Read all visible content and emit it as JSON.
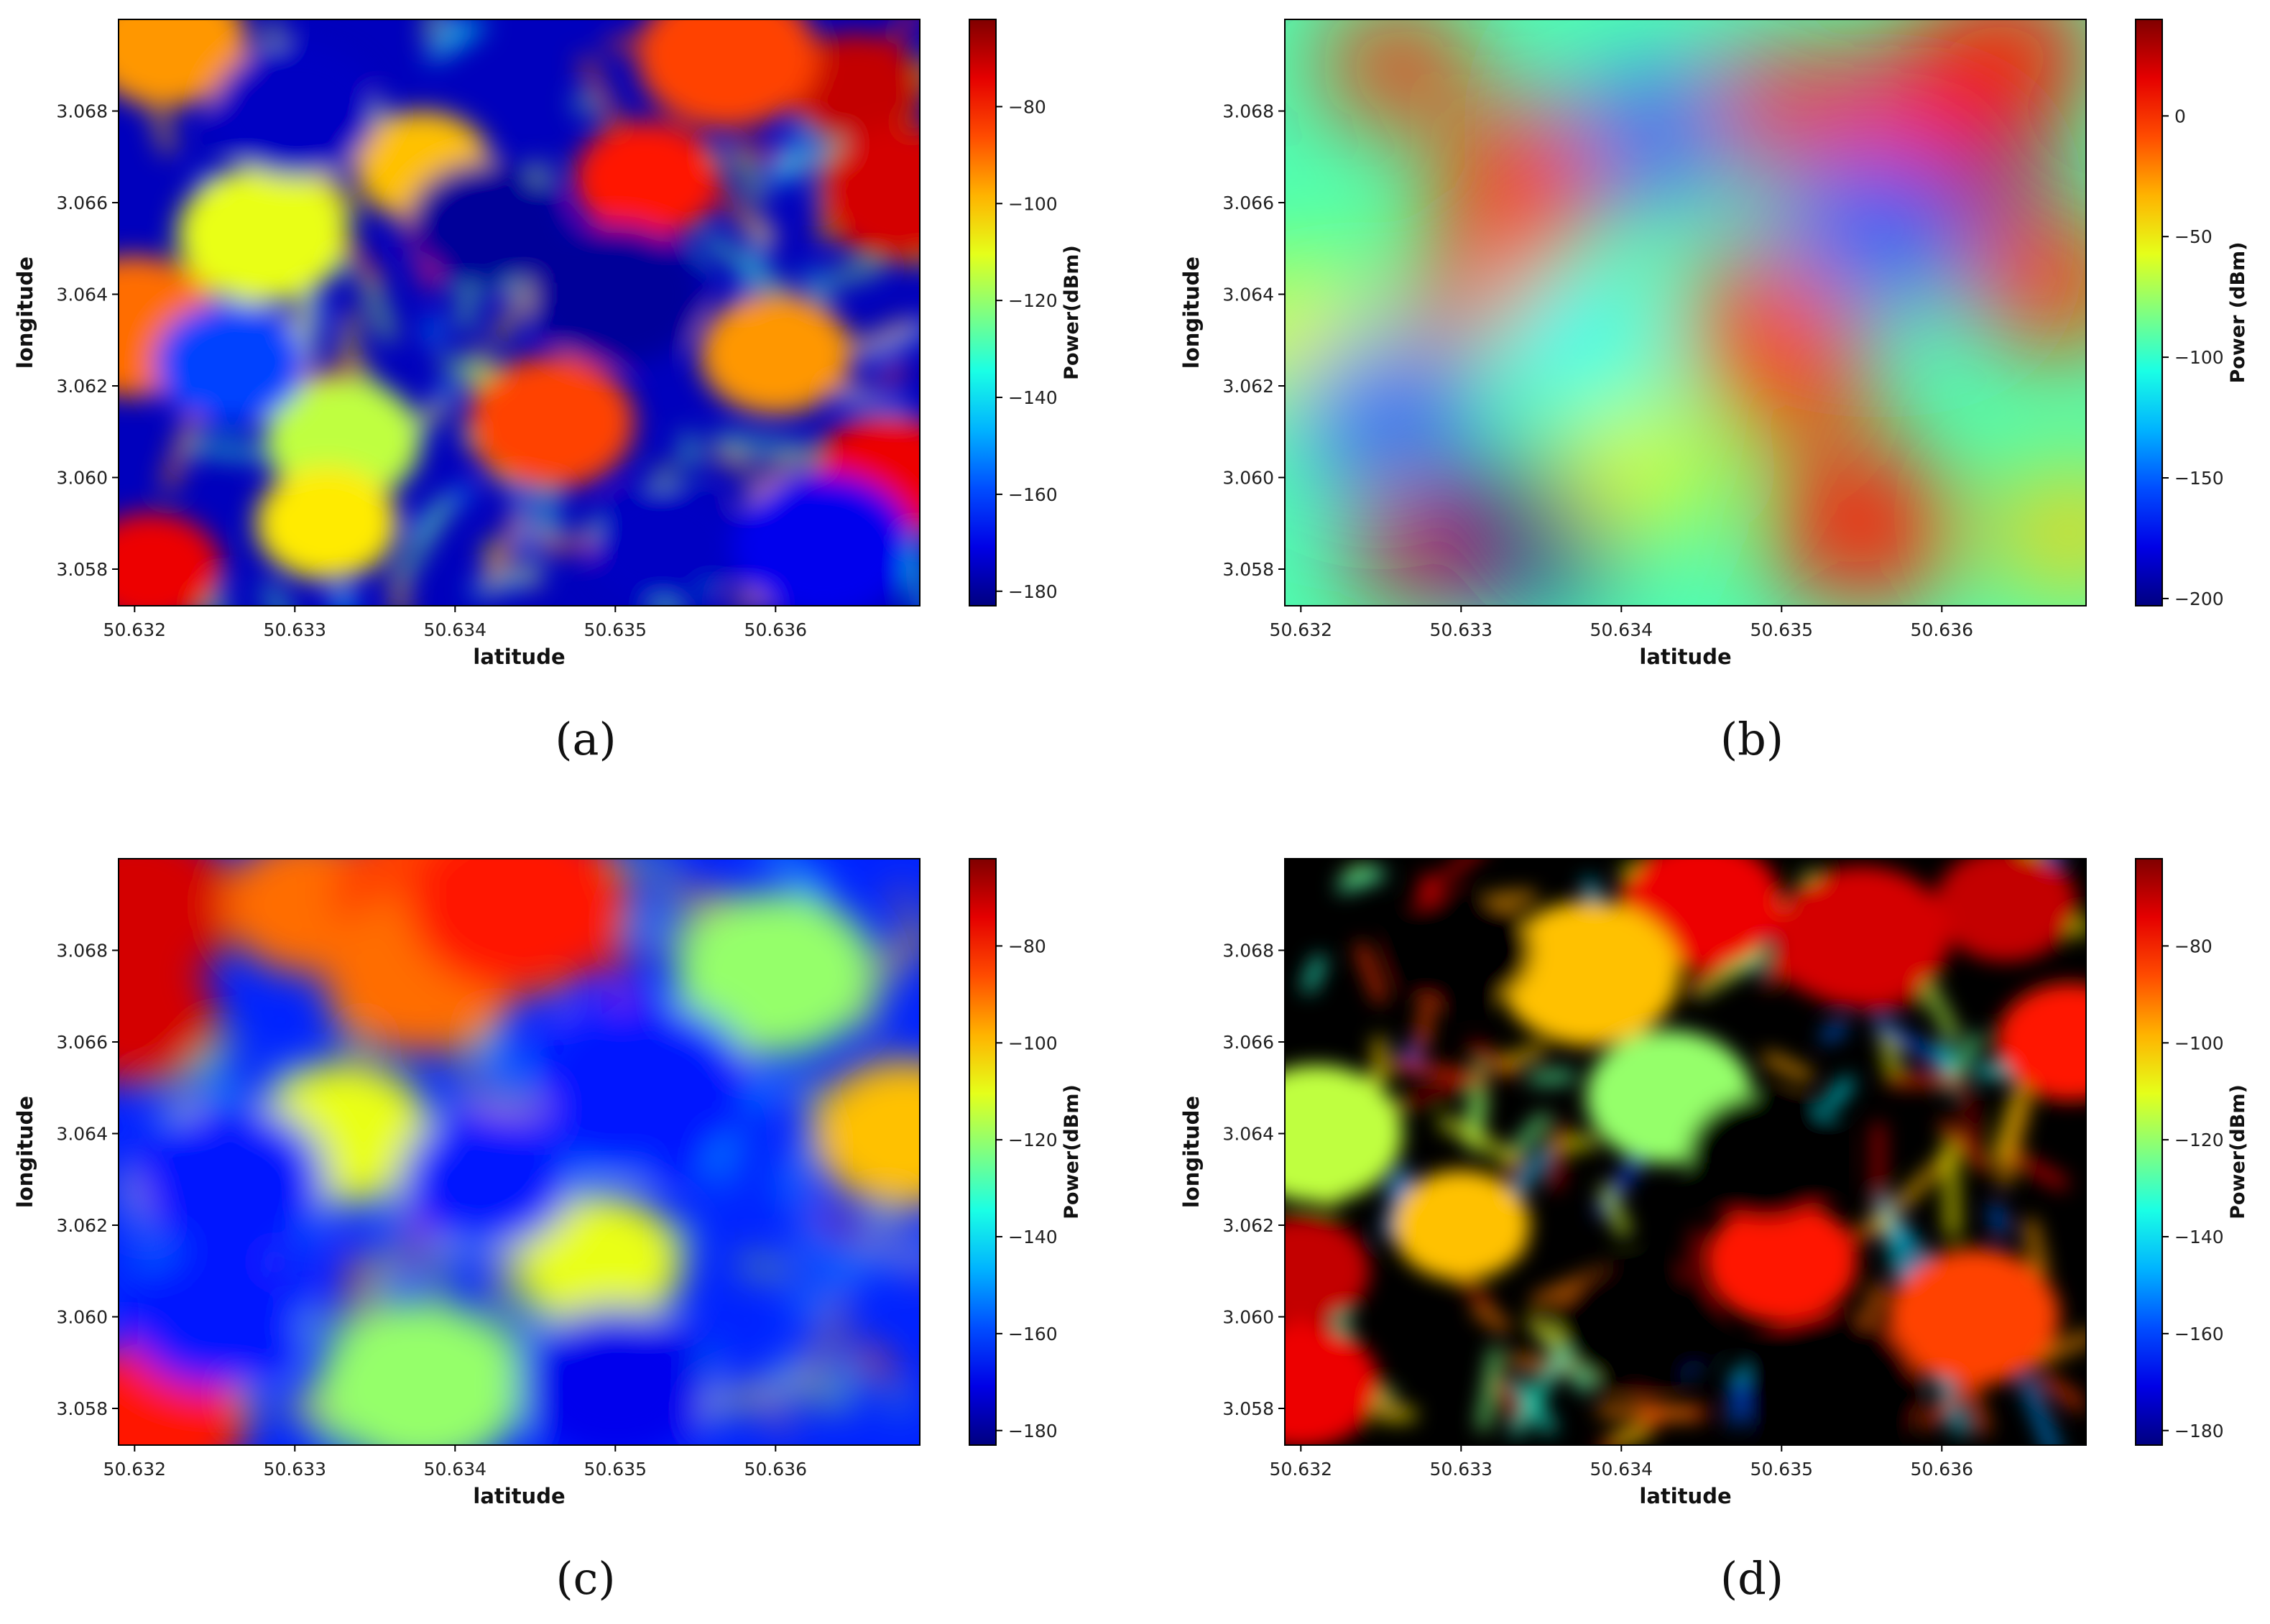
{
  "chart_data": [
    {
      "panel": "(a)",
      "type": "heatmap",
      "xlabel": "latitude",
      "ylabel": "longitude",
      "colorbar_label": "Power(dBm)",
      "colormap": "jet",
      "xlim": [
        50.6319,
        50.6369
      ],
      "ylim": [
        3.0572,
        3.07
      ],
      "xticks": [
        "50.632",
        "50.633",
        "50.634",
        "50.635",
        "50.636"
      ],
      "yticks": [
        "3.058",
        "3.060",
        "3.062",
        "3.064",
        "3.066",
        "3.068"
      ],
      "clim": [
        -183,
        -62
      ],
      "cticks": [
        "-80",
        "-100",
        "-120",
        "-140",
        "-160",
        "-180"
      ],
      "blobs": [
        {
          "x": 50.6365,
          "y": 3.0685,
          "v": -70
        },
        {
          "x": 50.6368,
          "y": 3.0662,
          "v": -72
        },
        {
          "x": 50.6367,
          "y": 3.06,
          "v": -75
        },
        {
          "x": 50.6321,
          "y": 3.058,
          "v": -75
        },
        {
          "x": 50.632,
          "y": 3.0633,
          "v": -90
        },
        {
          "x": 50.6322,
          "y": 3.0695,
          "v": -95
        },
        {
          "x": 50.6352,
          "y": 3.0665,
          "v": -80
        },
        {
          "x": 50.6357,
          "y": 3.0692,
          "v": -85
        },
        {
          "x": 50.6346,
          "y": 3.0612,
          "v": -85
        },
        {
          "x": 50.636,
          "y": 3.0627,
          "v": -95
        },
        {
          "x": 50.6338,
          "y": 3.0668,
          "v": -100
        },
        {
          "x": 50.6328,
          "y": 3.0653,
          "v": -110
        },
        {
          "x": 50.6333,
          "y": 3.0608,
          "v": -115
        },
        {
          "x": 50.6332,
          "y": 3.059,
          "v": -105
        },
        {
          "x": 50.635,
          "y": 3.064,
          "v": -180
        },
        {
          "x": 50.6342,
          "y": 3.0655,
          "v": -180
        },
        {
          "x": 50.6353,
          "y": 3.0585,
          "v": -175
        },
        {
          "x": 50.6363,
          "y": 3.0585,
          "v": -170
        },
        {
          "x": 50.633,
          "y": 3.068,
          "v": -175
        },
        {
          "x": 50.6326,
          "y": 3.0625,
          "v": -160
        }
      ]
    },
    {
      "panel": "(b)",
      "type": "heatmap",
      "xlabel": "latitude",
      "ylabel": "longitude",
      "colorbar_label": "Power (dBm)",
      "colormap": "jet",
      "xlim": [
        50.6319,
        50.6369
      ],
      "ylim": [
        3.0572,
        3.07
      ],
      "xticks": [
        "50.632",
        "50.633",
        "50.634",
        "50.635",
        "50.636"
      ],
      "yticks": [
        "3.058",
        "3.060",
        "3.062",
        "3.064",
        "3.066",
        "3.068"
      ],
      "clim": [
        -203,
        40
      ],
      "cticks": [
        "0",
        "-50",
        "-100",
        "-150",
        "-200"
      ],
      "blobs": [
        {
          "x": 50.6326,
          "y": 3.069,
          "v": 0
        },
        {
          "x": 50.6334,
          "y": 3.0666,
          "v": -5
        },
        {
          "x": 50.6332,
          "y": 3.064,
          "v": -5
        },
        {
          "x": 50.6328,
          "y": 3.0585,
          "v": 20
        },
        {
          "x": 50.6335,
          "y": 3.0589,
          "v": -200
        },
        {
          "x": 50.6349,
          "y": 3.0635,
          "v": -10
        },
        {
          "x": 50.6351,
          "y": 3.062,
          "v": -5
        },
        {
          "x": 50.6355,
          "y": 3.0589,
          "v": 5
        },
        {
          "x": 50.6361,
          "y": 3.0665,
          "v": 30
        },
        {
          "x": 50.6358,
          "y": 3.068,
          "v": 5
        },
        {
          "x": 50.635,
          "y": 3.0681,
          "v": 0
        },
        {
          "x": 50.6364,
          "y": 3.0692,
          "v": 5
        },
        {
          "x": 50.6367,
          "y": 3.0642,
          "v": -5
        },
        {
          "x": 50.6368,
          "y": 3.0588,
          "v": -40
        },
        {
          "x": 50.632,
          "y": 3.063,
          "v": -55
        },
        {
          "x": 50.6341,
          "y": 3.0602,
          "v": -60
        },
        {
          "x": 50.6342,
          "y": 3.0675,
          "v": -150
        },
        {
          "x": 50.6356,
          "y": 3.0655,
          "v": -150
        },
        {
          "x": 50.6325,
          "y": 3.0615,
          "v": -150
        },
        {
          "x": 50.6337,
          "y": 3.063,
          "v": -110
        }
      ]
    },
    {
      "panel": "(c)",
      "type": "heatmap",
      "xlabel": "latitude",
      "ylabel": "longitude",
      "colorbar_label": "Power(dBm)",
      "colormap": "jet",
      "xlim": [
        50.6319,
        50.6369
      ],
      "ylim": [
        3.0572,
        3.07
      ],
      "xticks": [
        "50.632",
        "50.633",
        "50.634",
        "50.635",
        "50.636"
      ],
      "yticks": [
        "3.058",
        "3.060",
        "3.062",
        "3.064",
        "3.066",
        "3.068"
      ],
      "clim": [
        -183,
        -62
      ],
      "cticks": [
        "-80",
        "-100",
        "-120",
        "-140",
        "-160",
        "-180"
      ],
      "blobs": [
        {
          "x": 50.632,
          "y": 3.0665,
          "v": -72
        },
        {
          "x": 50.632,
          "y": 3.069,
          "v": -72
        },
        {
          "x": 50.6321,
          "y": 3.0578,
          "v": -80
        },
        {
          "x": 50.6331,
          "y": 3.069,
          "v": -90
        },
        {
          "x": 50.6339,
          "y": 3.0692,
          "v": -85
        },
        {
          "x": 50.6338,
          "y": 3.0675,
          "v": -90
        },
        {
          "x": 50.6333,
          "y": 3.064,
          "v": -110
        },
        {
          "x": 50.6344,
          "y": 3.069,
          "v": -80
        },
        {
          "x": 50.636,
          "y": 3.0675,
          "v": -120
        },
        {
          "x": 50.6368,
          "y": 3.064,
          "v": -100
        },
        {
          "x": 50.6349,
          "y": 3.0612,
          "v": -110
        },
        {
          "x": 50.6338,
          "y": 3.0585,
          "v": -120
        },
        {
          "x": 50.6326,
          "y": 3.063,
          "v": -165
        },
        {
          "x": 50.6342,
          "y": 3.063,
          "v": -165
        },
        {
          "x": 50.6352,
          "y": 3.065,
          "v": -165
        },
        {
          "x": 50.635,
          "y": 3.0585,
          "v": -170
        },
        {
          "x": 50.6325,
          "y": 3.06,
          "v": -165
        }
      ]
    },
    {
      "panel": "(d)",
      "type": "heatmap",
      "xlabel": "latitude",
      "ylabel": "longitude",
      "colorbar_label": "Power(dBm)",
      "colormap": "jet",
      "xlim": [
        50.6319,
        50.6369
      ],
      "ylim": [
        3.0572,
        3.07
      ],
      "xticks": [
        "50.632",
        "50.633",
        "50.634",
        "50.635",
        "50.636"
      ],
      "yticks": [
        "3.058",
        "3.060",
        "3.062",
        "3.064",
        "3.066",
        "3.068"
      ],
      "clim": [
        -183,
        -62
      ],
      "cticks": [
        "-80",
        "-100",
        "-120",
        "-140",
        "-160",
        "-180"
      ],
      "blobs": [
        {
          "x": 50.632,
          "y": 3.061,
          "v": -70
        },
        {
          "x": 50.6321,
          "y": 3.064,
          "v": -115
        },
        {
          "x": 50.632,
          "y": 3.0585,
          "v": -75
        },
        {
          "x": 50.6364,
          "y": 3.069,
          "v": -70
        },
        {
          "x": 50.6355,
          "y": 3.0683,
          "v": -72
        },
        {
          "x": 50.6345,
          "y": 3.069,
          "v": -75
        },
        {
          "x": 50.6368,
          "y": 3.066,
          "v": -80
        },
        {
          "x": 50.6338,
          "y": 3.0675,
          "v": -100
        },
        {
          "x": 50.6343,
          "y": 3.0648,
          "v": -120
        },
        {
          "x": 50.635,
          "y": 3.0612,
          "v": -80
        },
        {
          "x": 50.633,
          "y": 3.062,
          "v": -100
        },
        {
          "x": 50.6362,
          "y": 3.06,
          "v": -85
        },
        {
          "x": 50.6349,
          "y": 3.0635,
          "v": -190
        },
        {
          "x": 50.633,
          "y": 3.068,
          "v": -190
        },
        {
          "x": 50.6353,
          "y": 3.0585,
          "v": -190
        },
        {
          "x": 50.6341,
          "y": 3.0598,
          "v": -175
        }
      ]
    }
  ]
}
